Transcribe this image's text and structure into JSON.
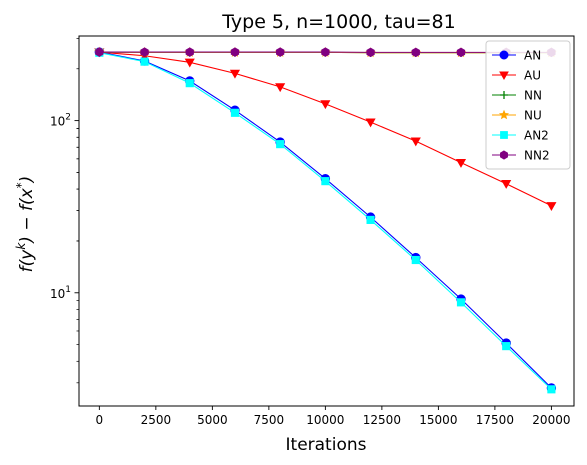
{
  "chart_data": {
    "type": "line",
    "title": "Type 5, n=1000, tau=81",
    "xlabel": "Iterations",
    "ylabel": "f(y^k) − f(x*)",
    "ylabel_parts": {
      "f1": "f(y",
      "sup1": "k",
      "mid": ") − f(x",
      "sup2": "*",
      "end": ")"
    },
    "yscale": "log",
    "xlim": [
      -900,
      21000
    ],
    "ylim": [
      2.2,
      310
    ],
    "x_ticks": [
      0,
      2500,
      5000,
      7500,
      10000,
      12500,
      15000,
      17500,
      20000
    ],
    "x_tick_labels": [
      "0",
      "2500",
      "5000",
      "7500",
      "10000",
      "12500",
      "15000",
      "17500",
      "20000"
    ],
    "y_ticks": [
      {
        "value": 10,
        "base": "10",
        "exp": "1"
      },
      {
        "value": 100,
        "base": "10",
        "exp": "2"
      }
    ],
    "legend_position": "top-right",
    "x": [
      0,
      2000,
      4000,
      6000,
      8000,
      10000,
      12000,
      14000,
      16000,
      18000,
      20000
    ],
    "series": [
      {
        "name": "AN",
        "color": "#0000ff",
        "marker": "circle",
        "values": [
          250,
          222,
          170,
          115,
          75,
          46,
          27.5,
          16,
          9.2,
          5.1,
          2.8
        ]
      },
      {
        "name": "AU",
        "color": "#ff0000",
        "marker": "triangle-down",
        "values": [
          250,
          238,
          218,
          188,
          157,
          125,
          98,
          76,
          57,
          43,
          32
        ]
      },
      {
        "name": "NN",
        "color": "#008000",
        "marker": "plus",
        "values": [
          250,
          249,
          249,
          249,
          249,
          249,
          248,
          248,
          248,
          248,
          248
        ]
      },
      {
        "name": "NU",
        "color": "#ffa500",
        "marker": "star",
        "values": [
          250,
          249,
          249,
          249,
          249,
          249,
          248,
          248,
          248,
          248,
          248
        ]
      },
      {
        "name": "AN2",
        "color": "#00ffff",
        "marker": "square",
        "values": [
          248,
          220,
          165,
          111,
          73,
          44.5,
          26.5,
          15.5,
          8.8,
          4.9,
          2.75
        ]
      },
      {
        "name": "NN2",
        "color": "#800080",
        "marker": "hexagon",
        "values": [
          250,
          250,
          250,
          250,
          250,
          250,
          249,
          249,
          249,
          249,
          249
        ]
      }
    ]
  }
}
